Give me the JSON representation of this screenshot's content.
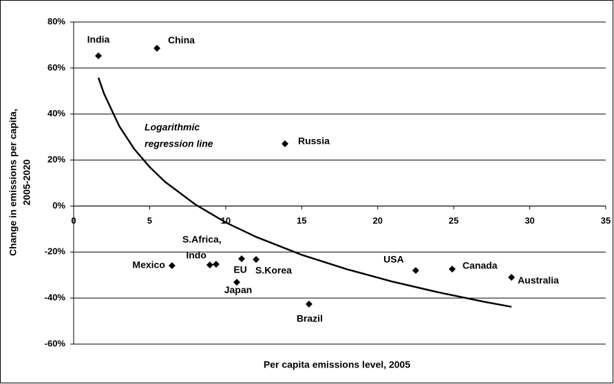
{
  "chart_data": {
    "type": "scatter",
    "xlabel": "Per capita emissions level, 2005",
    "ylabel": [
      "Change in emissions per capita,",
      "2005-2020"
    ],
    "annotation": [
      "Logarithmic",
      "regression line"
    ],
    "xlim": [
      0,
      35
    ],
    "xticks": [
      0,
      5,
      10,
      15,
      20,
      25,
      30,
      35
    ],
    "ylim": [
      -60,
      80
    ],
    "yticks": [
      {
        "value": -60,
        "label": "-60%"
      },
      {
        "value": -40,
        "label": "-40%"
      },
      {
        "value": -20,
        "label": "-20%"
      },
      {
        "value": 0,
        "label": "0%"
      },
      {
        "value": 20,
        "label": "20%"
      },
      {
        "value": 40,
        "label": "40%"
      },
      {
        "value": 60,
        "label": "60%"
      },
      {
        "value": 80,
        "label": "80%"
      }
    ],
    "grid": true,
    "color": "#000000",
    "labels": [
      "India",
      "China",
      "Russia",
      "Mexico",
      "Indo",
      "S.Africa,",
      "EU",
      "S.Korea",
      "Japan",
      "Brazil",
      "USA",
      "Canada",
      "Australia"
    ],
    "x": [
      1.63,
      5.48,
      13.9,
      6.47,
      8.96,
      9.37,
      11.05,
      12.0,
      10.73,
      15.48,
      22.5,
      24.9,
      28.8
    ],
    "values": [
      65.3,
      68.6,
      27.1,
      -25.9,
      -25.6,
      -25.3,
      -22.9,
      -23.2,
      -33.1,
      -42.6,
      -28.0,
      -27.4,
      -31.0
    ],
    "trend": {
      "color": "#000000",
      "x": [
        1.63,
        2,
        3,
        4,
        5,
        6,
        8,
        10,
        12,
        15,
        18,
        21,
        24,
        27,
        28.8
      ],
      "values": [
        55.8,
        48.8,
        34.7,
        24.7,
        17.0,
        10.6,
        0.7,
        -7.1,
        -13.4,
        -21.2,
        -27.5,
        -32.9,
        -37.5,
        -41.6,
        -43.8
      ]
    }
  }
}
